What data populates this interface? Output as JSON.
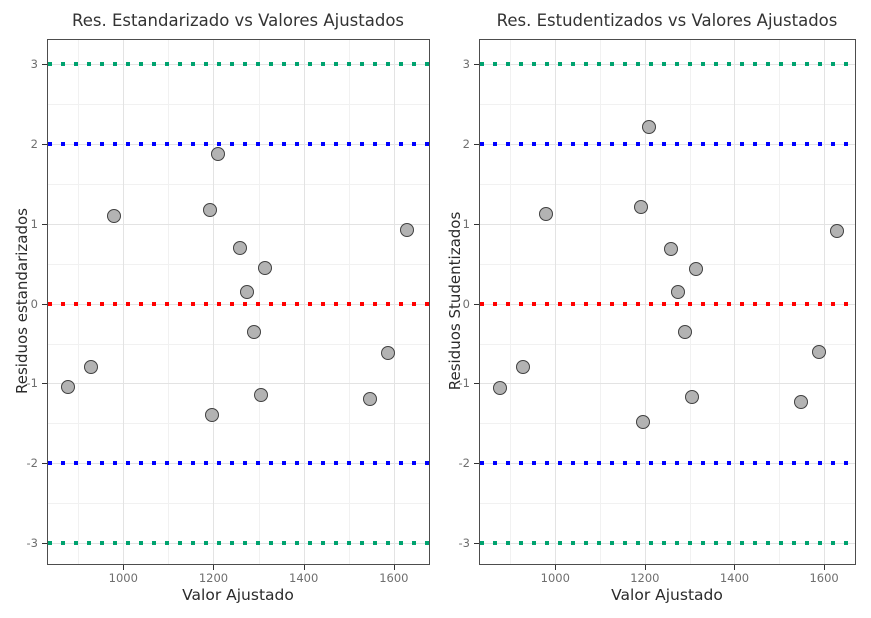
{
  "figure": {
    "background": "#ffffff",
    "grid_major_color": "#e3e3e3",
    "grid_minor_color": "#f1f1f1",
    "panel_border_color": "#4d4d4d",
    "title_color": "#333333",
    "axis_text_color": "#6e6e6e"
  },
  "chart_data": [
    {
      "type": "scatter",
      "title": "Res. Estandarizado vs Valores Ajustados",
      "xlabel": "Valor Ajustado",
      "ylabel": "Residuos estandarizados",
      "xlim": [
        833,
        1678
      ],
      "ylim": [
        -3.26,
        3.3
      ],
      "x_ticks": [
        1000,
        1200,
        1400,
        1600
      ],
      "y_ticks": [
        3,
        2,
        1,
        0,
        -1,
        -2,
        -3
      ],
      "x_minor": [
        900,
        1100,
        1300,
        1500,
        1700
      ],
      "y_minor": [
        2.5,
        1.5,
        0.5,
        -0.5,
        -1.5,
        -2.5
      ],
      "grid": true,
      "legend": "none",
      "point_style": {
        "fill": "#b3b3b3",
        "stroke": "#404040"
      },
      "reference_lines": [
        {
          "y": 3,
          "color": "#00a36f",
          "style": "dotted"
        },
        {
          "y": 2,
          "color": "#0000ff",
          "style": "dotted"
        },
        {
          "y": 0,
          "color": "#ff0000",
          "style": "dotted"
        },
        {
          "y": -2,
          "color": "#0000ff",
          "style": "dotted"
        },
        {
          "y": -3,
          "color": "#00a36f",
          "style": "dotted"
        }
      ],
      "points": [
        {
          "x": 877,
          "y": -1.04
        },
        {
          "x": 928,
          "y": -0.79
        },
        {
          "x": 980,
          "y": 1.1
        },
        {
          "x": 1192,
          "y": 1.17
        },
        {
          "x": 1196,
          "y": -1.39
        },
        {
          "x": 1210,
          "y": 1.87
        },
        {
          "x": 1258,
          "y": 0.7
        },
        {
          "x": 1274,
          "y": 0.15
        },
        {
          "x": 1290,
          "y": -0.35
        },
        {
          "x": 1305,
          "y": -1.15
        },
        {
          "x": 1314,
          "y": 0.44
        },
        {
          "x": 1548,
          "y": -1.19
        },
        {
          "x": 1588,
          "y": -0.62
        },
        {
          "x": 1629,
          "y": 0.92
        }
      ]
    },
    {
      "type": "scatter",
      "title": "Res. Estudentizados vs Valores Ajustados",
      "xlabel": "Valor Ajustado",
      "ylabel": "Residuos Studentizados",
      "xlim": [
        832,
        1669
      ],
      "ylim": [
        -3.26,
        3.3
      ],
      "x_ticks": [
        1000,
        1200,
        1400,
        1600
      ],
      "y_ticks": [
        3,
        2,
        1,
        0,
        -1,
        -2,
        -3
      ],
      "x_minor": [
        900,
        1100,
        1300,
        1500,
        1700
      ],
      "y_minor": [
        2.5,
        1.5,
        0.5,
        -0.5,
        -1.5,
        -2.5
      ],
      "grid": true,
      "legend": "none",
      "point_style": {
        "fill": "#b3b3b3",
        "stroke": "#404040"
      },
      "reference_lines": [
        {
          "y": 3,
          "color": "#00a36f",
          "style": "dotted"
        },
        {
          "y": 2,
          "color": "#0000ff",
          "style": "dotted"
        },
        {
          "y": 0,
          "color": "#ff0000",
          "style": "dotted"
        },
        {
          "y": -2,
          "color": "#0000ff",
          "style": "dotted"
        },
        {
          "y": -3,
          "color": "#00a36f",
          "style": "dotted"
        }
      ],
      "points": [
        {
          "x": 877,
          "y": -1.06
        },
        {
          "x": 928,
          "y": -0.79
        },
        {
          "x": 980,
          "y": 1.12
        },
        {
          "x": 1192,
          "y": 1.21
        },
        {
          "x": 1196,
          "y": -1.48
        },
        {
          "x": 1210,
          "y": 2.21
        },
        {
          "x": 1258,
          "y": 0.68
        },
        {
          "x": 1274,
          "y": 0.15
        },
        {
          "x": 1290,
          "y": -0.36
        },
        {
          "x": 1305,
          "y": -1.17
        },
        {
          "x": 1314,
          "y": 0.43
        },
        {
          "x": 1548,
          "y": -1.23
        },
        {
          "x": 1588,
          "y": -0.61
        },
        {
          "x": 1629,
          "y": 0.91
        }
      ]
    }
  ]
}
